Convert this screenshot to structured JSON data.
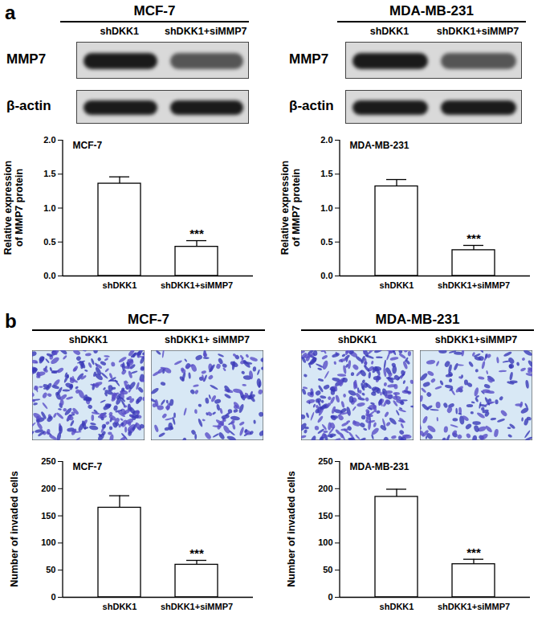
{
  "figure": {
    "panels": [
      {
        "label": "a",
        "type": "western_blot",
        "columns": [
          {
            "cell_line": "MCF-7",
            "lanes": [
              "shDKK1",
              "shDKK1+siMMP7"
            ],
            "rows": [
              "MMP7",
              "β-actin"
            ]
          },
          {
            "cell_line": "MDA-MB-231",
            "lanes": [
              "shDKK1",
              "shDKK1+siMMP7"
            ],
            "rows": [
              "MMP7",
              "β-actin"
            ]
          }
        ]
      },
      {
        "label": "b",
        "type": "transwell_images",
        "columns": [
          {
            "cell_line": "MCF-7",
            "lanes": [
              "shDKK1",
              "shDKK1+ siMMP7"
            ]
          },
          {
            "cell_line": "MDA-MB-231",
            "lanes": [
              "shDKK1",
              "shDKK1+siMMP7"
            ]
          }
        ]
      }
    ]
  },
  "chart_data": [
    {
      "type": "bar",
      "title": "MCF-7",
      "y_label": "Relative expression of MMP7 protein",
      "categories": [
        "shDKK1",
        "shDKK1+siMMP7"
      ],
      "values": [
        1.36,
        0.43
      ],
      "errors": [
        0.1,
        0.09
      ],
      "color": "#ffffff",
      "ylim": [
        0,
        2
      ],
      "yticks": [
        {
          "value": 0,
          "label": "0.0"
        },
        {
          "value": 0.5,
          "label": "0.5"
        },
        {
          "value": 1,
          "label": "1.0"
        },
        {
          "value": 1.5,
          "label": "1.5"
        },
        {
          "value": 2,
          "label": "2.0"
        }
      ],
      "annotations": [
        {
          "category": "shDKK1+siMMP7",
          "text": "***"
        }
      ]
    },
    {
      "type": "bar",
      "title": "MDA-MB-231",
      "y_label": "Relative expression of MMP7 protein",
      "categories": [
        "shDKK1",
        "shDKK1+siMMP7"
      ],
      "values": [
        1.32,
        0.38
      ],
      "errors": [
        0.1,
        0.07
      ],
      "color": "#ffffff",
      "ylim": [
        0,
        2
      ],
      "yticks": [
        {
          "value": 0,
          "label": "0.0"
        },
        {
          "value": 0.5,
          "label": "0.5"
        },
        {
          "value": 1,
          "label": "1.0"
        },
        {
          "value": 1.5,
          "label": "1.5"
        },
        {
          "value": 2,
          "label": "2.0"
        }
      ],
      "annotations": [
        {
          "category": "shDKK1+siMMP7",
          "text": "***"
        }
      ]
    },
    {
      "type": "bar",
      "title": "MCF-7",
      "y_label": "Number of invaded cells",
      "categories": [
        "shDKK1",
        "shDKK1+siMMP7"
      ],
      "values": [
        165,
        60
      ],
      "errors": [
        22,
        8
      ],
      "color": "#ffffff",
      "ylim": [
        0,
        250
      ],
      "yticks": [
        0,
        50,
        100,
        150,
        200,
        250
      ],
      "annotations": [
        {
          "category": "shDKK1+siMMP7",
          "text": "***"
        }
      ]
    },
    {
      "type": "bar",
      "title": "MDA-MB-231",
      "y_label": "Number of invaded cells",
      "categories": [
        "shDKK1",
        "shDKK1+siMMP7"
      ],
      "values": [
        185,
        61
      ],
      "errors": [
        14,
        9
      ],
      "color": "#ffffff",
      "ylim": [
        0,
        250
      ],
      "yticks": [
        0,
        50,
        100,
        150,
        200,
        250
      ],
      "annotations": [
        {
          "category": "shDKK1+siMMP7",
          "text": "***"
        }
      ]
    }
  ]
}
